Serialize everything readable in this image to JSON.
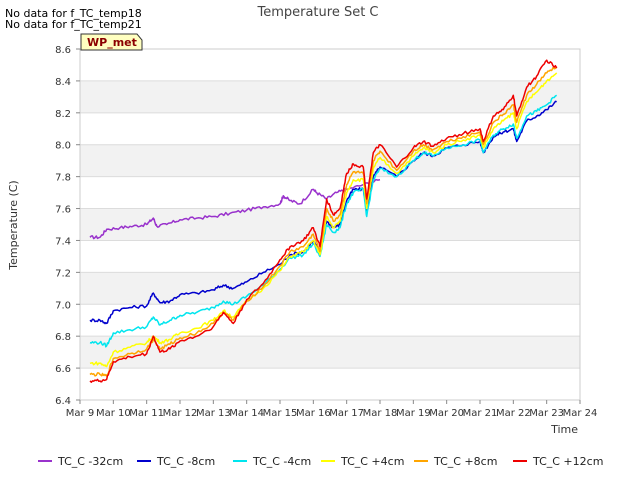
{
  "notes": [
    "No data for f_TC_temp18",
    "No data for f_TC_temp21"
  ],
  "chart_data": {
    "type": "line",
    "title": "Temperature Set C",
    "xlabel": "Time",
    "ylabel": "Temperature (C)",
    "badge": "WP_met",
    "xlim": [
      9,
      24
    ],
    "ylim": [
      6.4,
      8.6
    ],
    "yticks": [
      6.4,
      6.6,
      6.8,
      7.0,
      7.2,
      7.4,
      7.6,
      7.8,
      8.0,
      8.2,
      8.4,
      8.6
    ],
    "ytick_labels": [
      "6.4",
      "6.6",
      "6.8",
      "7.0",
      "7.2",
      "7.4",
      "7.6",
      "7.8",
      "8.0",
      "8.2",
      "8.4",
      "8.6"
    ],
    "xticks": [
      9,
      10,
      11,
      12,
      13,
      14,
      15,
      16,
      17,
      18,
      19,
      20,
      21,
      22,
      23,
      24
    ],
    "xtick_labels": [
      "Mar 9",
      "Mar 10",
      "Mar 11",
      "Mar 12",
      "Mar 13",
      "Mar 14",
      "Mar 15",
      "Mar 16",
      "Mar 17",
      "Mar 18",
      "Mar 19",
      "Mar 20",
      "Mar 21",
      "Mar 22",
      "Mar 23",
      "Mar 24"
    ],
    "grid_bands": true,
    "legend_position": "bottom",
    "series": [
      {
        "name": "TC_C -32cm",
        "color": "#9932cc",
        "x": [
          9.3,
          9.6,
          9.8,
          10.2,
          10.6,
          11.0,
          11.2,
          11.3,
          11.6,
          12.0,
          12.5,
          13.0,
          13.5,
          14.0,
          14.5,
          15.0,
          15.1,
          15.3,
          15.6,
          16.0,
          16.1,
          16.4,
          16.7,
          17.0,
          17.5,
          18.0
        ],
        "y": [
          7.42,
          7.42,
          7.47,
          7.48,
          7.49,
          7.5,
          7.54,
          7.49,
          7.5,
          7.53,
          7.54,
          7.55,
          7.57,
          7.59,
          7.61,
          7.63,
          7.68,
          7.65,
          7.63,
          7.72,
          7.7,
          7.66,
          7.7,
          7.72,
          7.75,
          7.78
        ]
      },
      {
        "name": "TC_C -8cm",
        "color": "#0000cd",
        "x": [
          9.3,
          9.6,
          9.8,
          10.0,
          10.5,
          11.0,
          11.2,
          11.4,
          11.7,
          12.0,
          12.5,
          13.0,
          13.3,
          13.6,
          14.0,
          14.5,
          15.0,
          15.3,
          15.7,
          16.0,
          16.2,
          16.4,
          16.6,
          16.8,
          17.0,
          17.2,
          17.5,
          17.6,
          17.8,
          18.0,
          18.5,
          19.0,
          19.3,
          19.6,
          20.0,
          20.5,
          21.0,
          21.1,
          21.4,
          21.7,
          22.0,
          22.1,
          22.4,
          22.7,
          23.0,
          23.3
        ],
        "y": [
          6.9,
          6.9,
          6.88,
          6.96,
          6.98,
          6.99,
          7.07,
          7.01,
          7.02,
          7.06,
          7.07,
          7.09,
          7.12,
          7.1,
          7.14,
          7.2,
          7.25,
          7.31,
          7.33,
          7.4,
          7.33,
          7.52,
          7.48,
          7.5,
          7.65,
          7.72,
          7.72,
          7.58,
          7.8,
          7.86,
          7.8,
          7.9,
          7.95,
          7.93,
          7.98,
          8.0,
          8.02,
          7.95,
          8.05,
          8.08,
          8.1,
          8.02,
          8.15,
          8.18,
          8.22,
          8.27
        ]
      },
      {
        "name": "TC_C -4cm",
        "color": "#00e5ee",
        "x": [
          9.3,
          9.6,
          9.8,
          10.0,
          10.5,
          11.0,
          11.2,
          11.4,
          11.7,
          12.0,
          12.5,
          13.0,
          13.3,
          13.6,
          14.0,
          14.5,
          15.0,
          15.3,
          15.7,
          16.0,
          16.2,
          16.4,
          16.6,
          16.8,
          17.0,
          17.2,
          17.5,
          17.6,
          17.8,
          18.0,
          18.5,
          19.0,
          19.3,
          19.6,
          20.0,
          20.5,
          21.0,
          21.1,
          21.4,
          21.7,
          22.0,
          22.1,
          22.4,
          22.7,
          23.0,
          23.3
        ],
        "y": [
          6.76,
          6.76,
          6.74,
          6.82,
          6.84,
          6.86,
          6.92,
          6.87,
          6.9,
          6.93,
          6.95,
          6.98,
          7.02,
          7.0,
          7.05,
          7.12,
          7.22,
          7.29,
          7.31,
          7.38,
          7.3,
          7.5,
          7.45,
          7.48,
          7.63,
          7.7,
          7.72,
          7.55,
          7.78,
          7.85,
          7.8,
          7.9,
          7.95,
          7.93,
          7.98,
          8.0,
          8.03,
          7.95,
          8.06,
          8.1,
          8.13,
          8.04,
          8.18,
          8.21,
          8.25,
          8.31
        ]
      },
      {
        "name": "TC_C +4cm",
        "color": "#ffff00",
        "x": [
          9.3,
          9.6,
          9.8,
          10.0,
          10.5,
          11.0,
          11.2,
          11.4,
          11.7,
          12.0,
          12.5,
          13.0,
          13.3,
          13.6,
          14.0,
          14.5,
          15.0,
          15.3,
          15.7,
          16.0,
          16.2,
          16.4,
          16.6,
          16.8,
          17.0,
          17.2,
          17.5,
          17.6,
          17.8,
          18.0,
          18.5,
          19.0,
          19.3,
          19.6,
          20.0,
          20.5,
          21.0,
          21.1,
          21.4,
          21.7,
          22.0,
          22.1,
          22.4,
          22.7,
          23.0,
          23.3
        ],
        "y": [
          6.63,
          6.63,
          6.61,
          6.7,
          6.73,
          6.76,
          6.8,
          6.76,
          6.78,
          6.82,
          6.85,
          6.9,
          6.96,
          6.92,
          7.02,
          7.1,
          7.21,
          7.3,
          7.33,
          7.4,
          7.31,
          7.55,
          7.48,
          7.52,
          7.7,
          7.78,
          7.78,
          7.6,
          7.85,
          7.92,
          7.82,
          7.93,
          7.98,
          7.95,
          8.0,
          8.03,
          8.06,
          7.98,
          8.1,
          8.15,
          8.2,
          8.1,
          8.27,
          8.33,
          8.4,
          8.45
        ]
      },
      {
        "name": "TC_C +8cm",
        "color": "#ffa500",
        "x": [
          9.3,
          9.6,
          9.8,
          10.0,
          10.5,
          11.0,
          11.2,
          11.4,
          11.7,
          12.0,
          12.5,
          13.0,
          13.3,
          13.6,
          14.0,
          14.5,
          15.0,
          15.3,
          15.7,
          16.0,
          16.2,
          16.4,
          16.6,
          16.8,
          17.0,
          17.2,
          17.5,
          17.6,
          17.8,
          18.0,
          18.5,
          19.0,
          19.3,
          19.6,
          20.0,
          20.5,
          21.0,
          21.1,
          21.4,
          21.7,
          22.0,
          22.1,
          22.4,
          22.7,
          23.0,
          23.3
        ],
        "y": [
          6.56,
          6.56,
          6.55,
          6.66,
          6.69,
          6.72,
          6.78,
          6.72,
          6.75,
          6.79,
          6.82,
          6.88,
          6.95,
          6.9,
          7.02,
          7.11,
          7.24,
          7.33,
          7.36,
          7.44,
          7.33,
          7.6,
          7.52,
          7.56,
          7.75,
          7.83,
          7.82,
          7.63,
          7.9,
          7.96,
          7.84,
          7.96,
          8.0,
          7.97,
          8.02,
          8.05,
          8.08,
          8.0,
          8.14,
          8.19,
          8.25,
          8.14,
          8.31,
          8.38,
          8.45,
          8.49
        ]
      },
      {
        "name": "TC_C +12cm",
        "color": "#ee0000",
        "x": [
          9.3,
          9.6,
          9.8,
          10.0,
          10.5,
          11.0,
          11.2,
          11.4,
          11.7,
          12.0,
          12.5,
          13.0,
          13.3,
          13.6,
          14.0,
          14.5,
          15.0,
          15.3,
          15.7,
          16.0,
          16.2,
          16.4,
          16.6,
          16.8,
          17.0,
          17.2,
          17.5,
          17.6,
          17.8,
          18.0,
          18.5,
          19.0,
          19.3,
          19.6,
          20.0,
          20.5,
          21.0,
          21.1,
          21.4,
          21.7,
          22.0,
          22.1,
          22.4,
          22.7,
          23.0,
          23.3
        ],
        "y": [
          6.52,
          6.52,
          6.53,
          6.64,
          6.67,
          6.69,
          6.8,
          6.7,
          6.72,
          6.77,
          6.8,
          6.86,
          6.95,
          6.88,
          7.03,
          7.13,
          7.28,
          7.36,
          7.4,
          7.48,
          7.36,
          7.66,
          7.56,
          7.6,
          7.82,
          7.88,
          7.86,
          7.66,
          7.95,
          8.0,
          7.86,
          7.98,
          8.02,
          7.99,
          8.04,
          8.07,
          8.1,
          8.02,
          8.18,
          8.22,
          8.31,
          8.18,
          8.36,
          8.43,
          8.53,
          8.48
        ]
      }
    ]
  }
}
